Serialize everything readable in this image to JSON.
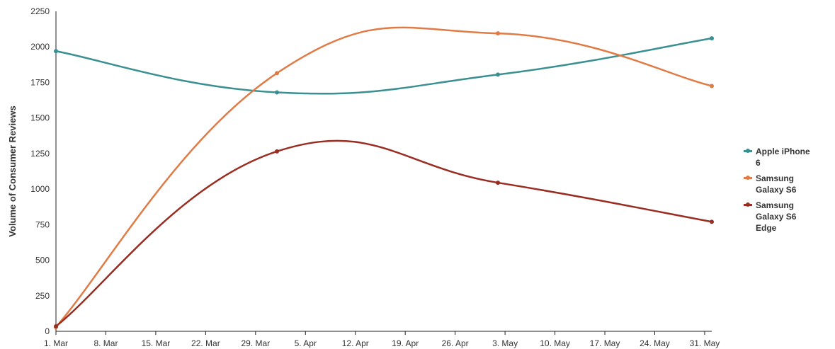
{
  "chart_data": {
    "type": "line",
    "ylabel": "Volume of Consumer Reviews",
    "xlabel": "",
    "ylim": [
      0,
      2250
    ],
    "yticks": [
      0,
      250,
      500,
      750,
      1000,
      1250,
      1500,
      1750,
      2000,
      2250
    ],
    "x_range": [
      "2015-03-01",
      "2015-06-01"
    ],
    "x_ticks": [
      {
        "date": "2015-03-01",
        "label": "1. Mar"
      },
      {
        "date": "2015-03-08",
        "label": "8. Mar"
      },
      {
        "date": "2015-03-15",
        "label": "15. Mar"
      },
      {
        "date": "2015-03-22",
        "label": "22. Mar"
      },
      {
        "date": "2015-03-29",
        "label": "29. Mar"
      },
      {
        "date": "2015-04-05",
        "label": "5. Apr"
      },
      {
        "date": "2015-04-12",
        "label": "12. Apr"
      },
      {
        "date": "2015-04-19",
        "label": "19. Apr"
      },
      {
        "date": "2015-04-26",
        "label": "26. Apr"
      },
      {
        "date": "2015-05-03",
        "label": "3. May"
      },
      {
        "date": "2015-05-10",
        "label": "10. May"
      },
      {
        "date": "2015-05-17",
        "label": "17. May"
      },
      {
        "date": "2015-05-24",
        "label": "24. May"
      },
      {
        "date": "2015-05-31",
        "label": "31. May"
      }
    ],
    "grid": false,
    "legend_position": "right",
    "series": [
      {
        "name": "Apple iPhone 6",
        "color": "#3a8f90",
        "x": [
          "2015-03-01",
          "2015-04-01",
          "2015-05-02",
          "2015-06-01"
        ],
        "values": [
          1970,
          1680,
          1805,
          2060
        ]
      },
      {
        "name": "Samsung Galaxy S6",
        "color": "#e07b45",
        "x": [
          "2015-03-01",
          "2015-04-01",
          "2015-05-02",
          "2015-06-01"
        ],
        "values": [
          30,
          1815,
          2095,
          1725
        ]
      },
      {
        "name": "Samsung Galaxy S6 Edge",
        "color": "#9a2d22",
        "x": [
          "2015-03-01",
          "2015-04-01",
          "2015-05-02",
          "2015-06-01"
        ],
        "values": [
          35,
          1265,
          1045,
          770
        ]
      }
    ]
  },
  "legend": {
    "items": [
      {
        "label": "Apple iPhone 6",
        "color": "#3a8f90"
      },
      {
        "label": "Samsung Galaxy S6",
        "color": "#e07b45"
      },
      {
        "label": "Samsung Galaxy S6 Edge",
        "color": "#9a2d22"
      }
    ]
  }
}
